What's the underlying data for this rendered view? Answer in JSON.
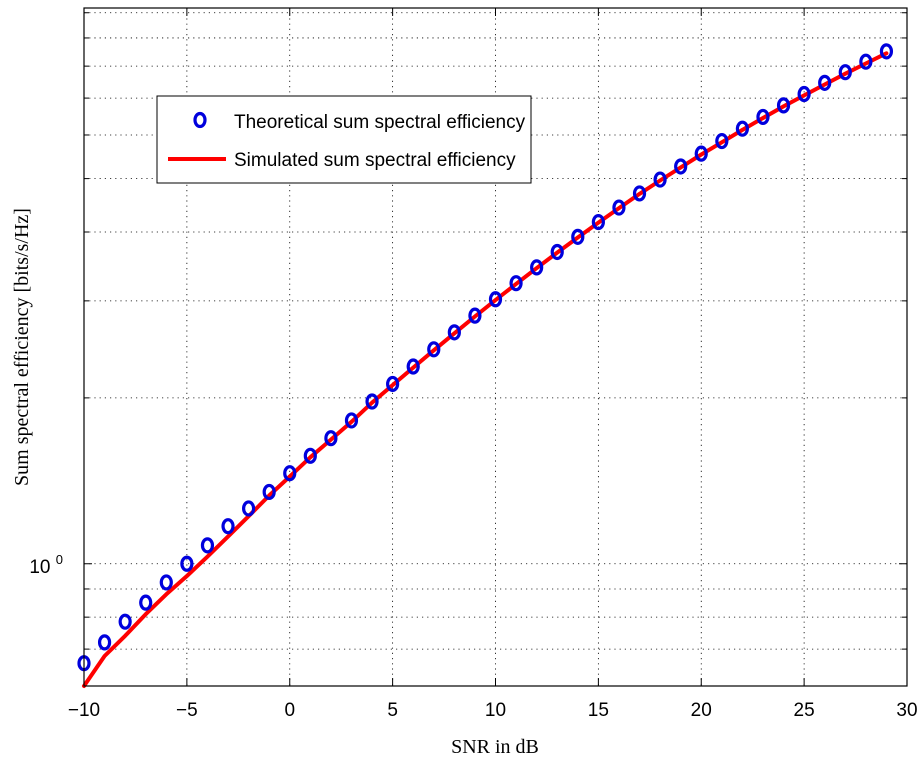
{
  "chart_data": {
    "type": "line",
    "title": "",
    "xlabel": "SNR in dB",
    "ylabel": "Sum spectral efficiency [bits/s/Hz]",
    "xlim": [
      -10,
      30
    ],
    "ylim": [
      0.6,
      10.2
    ],
    "y_scale": "log",
    "grid": true,
    "legend_position": "top-left",
    "x_ticks": [
      -10,
      -5,
      0,
      5,
      10,
      15,
      20,
      25,
      30
    ],
    "x_tick_labels": [
      "−10",
      "−5",
      "0",
      "5",
      "10",
      "15",
      "20",
      "25",
      "30"
    ],
    "y_major_tick_base": "10",
    "y_major_tick_exp": "0",
    "y_minor_ticks": [
      0.7,
      0.8,
      0.9,
      2,
      3,
      4,
      5,
      6,
      7,
      8,
      9,
      10
    ],
    "x": [
      -10,
      -9,
      -8,
      -7,
      -6,
      -5,
      -4,
      -3,
      -2,
      -1,
      0,
      1,
      2,
      3,
      4,
      5,
      6,
      7,
      8,
      9,
      10,
      11,
      12,
      13,
      14,
      15,
      16,
      17,
      18,
      19,
      20,
      21,
      22,
      23,
      24,
      25,
      26,
      27,
      28,
      29
    ],
    "series": [
      {
        "name": "Theoretical sum spectral efficiency",
        "style": "markers",
        "color": "#0000dd",
        "values": [
          0.66,
          0.72,
          0.785,
          0.85,
          0.925,
          1.0,
          1.08,
          1.17,
          1.26,
          1.35,
          1.46,
          1.57,
          1.69,
          1.82,
          1.97,
          2.12,
          2.28,
          2.45,
          2.63,
          2.82,
          3.02,
          3.23,
          3.45,
          3.68,
          3.92,
          4.17,
          4.43,
          4.7,
          4.98,
          5.26,
          5.55,
          5.85,
          6.16,
          6.47,
          6.79,
          7.12,
          7.46,
          7.8,
          8.15,
          8.51
        ]
      },
      {
        "name": "Simulated sum spectral efficiency",
        "style": "line",
        "color": "#ff0000",
        "values": [
          0.6,
          0.68,
          0.74,
          0.81,
          0.88,
          0.95,
          1.03,
          1.12,
          1.22,
          1.33,
          1.44,
          1.56,
          1.68,
          1.81,
          1.96,
          2.11,
          2.27,
          2.44,
          2.62,
          2.81,
          3.01,
          3.22,
          3.44,
          3.67,
          3.91,
          4.16,
          4.42,
          4.69,
          4.96,
          5.24,
          5.53,
          5.82,
          6.13,
          6.44,
          6.76,
          7.08,
          7.41,
          7.75,
          8.09,
          8.44
        ]
      }
    ]
  }
}
